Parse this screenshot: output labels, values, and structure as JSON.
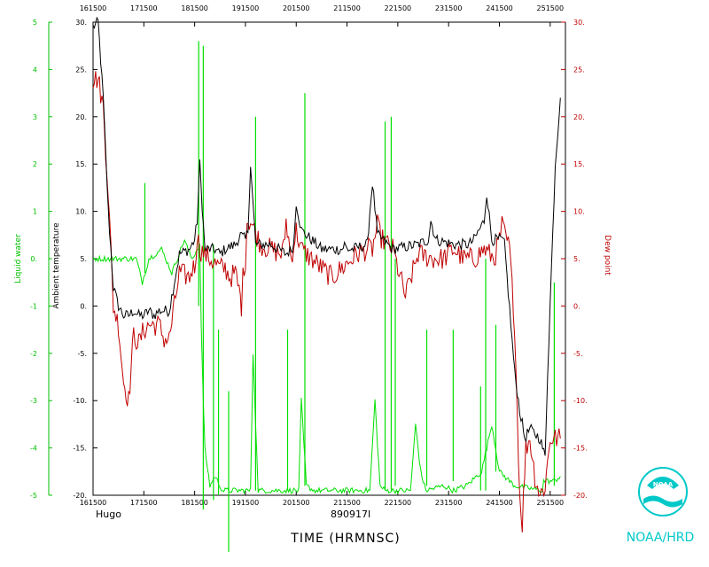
{
  "chart_data": {
    "type": "line",
    "storm_name": "Hugo",
    "date_code": "890917I",
    "xlabel": "TIME (HRMNSC)",
    "ylabel_left": "Liquid water",
    "ylabel_temp": "Ambient temperature",
    "ylabel_right": "Dew point",
    "x_ticks": [
      "161500",
      "171500",
      "181500",
      "191500",
      "201500",
      "211500",
      "221500",
      "231500",
      "241500",
      "251500"
    ],
    "x_range": [
      161500,
      251500
    ],
    "xlim": [
      161500,
      254500
    ],
    "ylim_liquid": [
      -5,
      5
    ],
    "liquid_ticks": [
      "-5",
      "-4",
      "-3",
      "-2",
      "-1",
      "0.",
      "1",
      "2",
      "3",
      "4",
      "5"
    ],
    "ylim_temp": [
      -20,
      30
    ],
    "temp_ticks": [
      "-20.",
      "-15.",
      "-10.",
      "-5.",
      "0.",
      "5.",
      "10.",
      "15.",
      "20.",
      "25.",
      "30."
    ],
    "ylim_dew": [
      -20,
      30
    ],
    "dew_ticks": [
      "-20.",
      "-15.",
      "-10.",
      "-5.",
      "0.",
      "5.",
      "10.",
      "15.",
      "20.",
      "25.",
      "30."
    ],
    "grid": false,
    "series": [
      {
        "key": "temperature",
        "color": "#000000",
        "axis": "temp",
        "x": [
          161500,
          162500,
          163500,
          164500,
          165500,
          166500,
          167500,
          168500,
          169500,
          170500,
          171500,
          172500,
          173500,
          174500,
          175500,
          176500,
          178500,
          180500,
          181500,
          182000,
          182500,
          183500,
          185500,
          186500,
          187500,
          189500,
          190500,
          191500,
          192000,
          192500,
          193500,
          196500,
          199500,
          200500,
          201000,
          201500,
          202500,
          206500,
          210500,
          211000,
          211500,
          212500,
          215500,
          216000,
          216500,
          217500,
          220500,
          225500,
          227500,
          228000,
          229000,
          232500,
          235500,
          236500,
          237500,
          238500,
          239000,
          240000,
          241500,
          242000,
          242500,
          244500,
          245500,
          246500,
          247500,
          249500,
          250500,
          251000,
          252500,
          253500
        ],
        "y": [
          29.5,
          30,
          22,
          10,
          2,
          0,
          -1,
          -1,
          -0.5,
          -1,
          -1,
          -0.5,
          -1,
          -0.5,
          -0.5,
          -0.5,
          5.5,
          6,
          7,
          9,
          15,
          6,
          6,
          5.5,
          6,
          6.5,
          7.5,
          7,
          8,
          15,
          6.5,
          6.5,
          5.5,
          6,
          6.5,
          11,
          8,
          6,
          6,
          6.5,
          6,
          6,
          6.5,
          10,
          13,
          7.5,
          6,
          6.5,
          7,
          9,
          7,
          6.5,
          6.5,
          7,
          8,
          9,
          12,
          7,
          7,
          7,
          6.5,
          -7,
          -11,
          -14,
          -13,
          -14,
          -16,
          -7,
          15,
          22
        ]
      },
      {
        "key": "dew_point",
        "color": "#c00000",
        "axis": "dew",
        "x": [
          161500,
          162500,
          163500,
          164500,
          165500,
          166500,
          167500,
          168500,
          169500,
          170500,
          171500,
          172500,
          173500,
          174500,
          175500,
          176500,
          178500,
          180500,
          181000,
          181500,
          182000,
          182500,
          184500,
          185500,
          186500,
          187500,
          188500,
          189500,
          190500,
          190700,
          191000,
          191500,
          191800,
          192500,
          194500,
          198500,
          199000,
          199500,
          200500,
          201000,
          201500,
          202500,
          206500,
          208500,
          210500,
          213500,
          215500,
          216500,
          217500,
          218000,
          218500,
          220500,
          221500,
          222000,
          223000,
          225500,
          228500,
          230500,
          232500,
          234500,
          236500,
          238500,
          240500,
          241500,
          242000,
          243500,
          244500,
          245500,
          246000,
          246700,
          247500,
          248500,
          249500,
          250500,
          251500,
          252500,
          253500
        ],
        "y": [
          24,
          24,
          21,
          12,
          0,
          -2,
          -8,
          -10,
          -3,
          -4,
          -2.5,
          -2,
          -2,
          -2,
          -3.5,
          -3.5,
          3.5,
          3,
          4,
          4,
          7.5,
          6,
          5,
          4.5,
          4,
          4,
          3,
          3.5,
          1,
          0,
          3,
          5,
          9,
          9,
          6.5,
          5.5,
          6,
          9,
          5,
          6.5,
          8,
          6,
          4,
          3,
          4,
          5.5,
          6,
          6,
          8.5,
          7.5,
          7,
          6,
          4,
          3,
          1,
          5.5,
          5,
          5,
          6,
          5,
          5,
          6,
          5,
          7,
          8.5,
          6,
          -2,
          -20,
          -23,
          -15,
          -14,
          -18,
          -20,
          -19,
          -14,
          -14,
          -14
        ]
      },
      {
        "key": "liquid_water",
        "color": "#00e000",
        "axis": "liquid",
        "x": [
          161500,
          165000,
          168000,
          170000,
          171200,
          172500,
          175000,
          177000,
          179500,
          180500,
          181000,
          181500,
          182500,
          182800,
          183500,
          184500,
          185500,
          186500,
          187000,
          189500,
          192500,
          193000,
          194000,
          200000,
          202000,
          202500,
          203500,
          205000,
          216000,
          217000,
          218000,
          219000,
          224000,
          225000,
          226000,
          227000,
          230500,
          232500,
          235000,
          238000,
          240000,
          241500,
          242500,
          244500,
          250000,
          250200,
          252300,
          253500
        ],
        "y": [
          0,
          0,
          0,
          0,
          -0.5,
          0,
          0.2,
          -0.3,
          0.4,
          0.1,
          0,
          0.1,
          0.3,
          -1.5,
          -4,
          -4.8,
          -4.6,
          -4.8,
          -4.9,
          -4.9,
          -4.9,
          -2,
          -4.9,
          -4.9,
          -4.9,
          -3,
          -4.8,
          -4.9,
          -4.9,
          -3,
          -4.8,
          -4.9,
          -4.9,
          -3.5,
          -4.5,
          -4.9,
          -4.8,
          -4.9,
          -4.8,
          -4.5,
          -3.5,
          -4.5,
          -4.6,
          -4.8,
          -4.9,
          -4.7,
          -4.7,
          -4.6
        ]
      }
    ],
    "liquid_spikes": [
      {
        "x": 171700,
        "top": 1.6,
        "bottom": -0.3
      },
      {
        "x": 182300,
        "top": 4.6,
        "bottom": -1
      },
      {
        "x": 183200,
        "top": 4.5,
        "bottom": -5.3
      },
      {
        "x": 185200,
        "top": 0.3,
        "bottom": -5.1
      },
      {
        "x": 186200,
        "top": -1.5,
        "bottom": -5
      },
      {
        "x": 188200,
        "top": -2.8,
        "bottom": -6.2
      },
      {
        "x": 193500,
        "top": 3.0,
        "bottom": -4.9
      },
      {
        "x": 199800,
        "top": -1.5,
        "bottom": -4.9
      },
      {
        "x": 203200,
        "top": 3.5,
        "bottom": -4.8
      },
      {
        "x": 219000,
        "top": 2.9,
        "bottom": -4.9
      },
      {
        "x": 220200,
        "top": 3.0,
        "bottom": -4.9
      },
      {
        "x": 221000,
        "top": 0.0,
        "bottom": -4.8
      },
      {
        "x": 227200,
        "top": -1.5,
        "bottom": -4.8
      },
      {
        "x": 232400,
        "top": -1.5,
        "bottom": -4.7
      },
      {
        "x": 237800,
        "top": -2.7,
        "bottom": -4.9
      },
      {
        "x": 238800,
        "top": 0.0,
        "bottom": -4.9
      },
      {
        "x": 240800,
        "top": -1.4,
        "bottom": -4.5
      },
      {
        "x": 252300,
        "top": -0.5,
        "bottom": -4.8
      }
    ]
  },
  "logo": {
    "text": "NOAA/HRD",
    "emblem_text": "NOAA",
    "color": "#00c8c8"
  }
}
